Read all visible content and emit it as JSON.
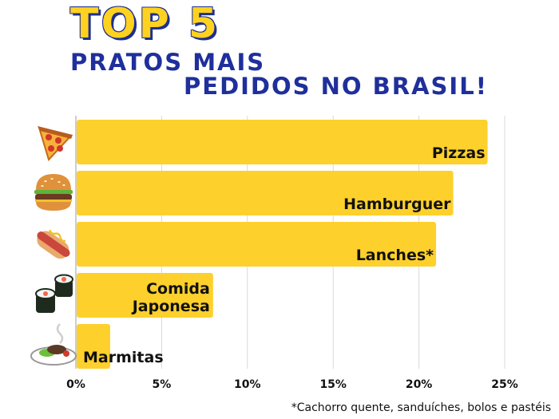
{
  "title": {
    "top": "TOP 5",
    "line1": "PRATOS MAIS",
    "line2": "PEDIDOS NO BRASIL!"
  },
  "footnote": "*Cachorro quente, sanduíches, bolos e pastéis",
  "colors": {
    "bar": "#fdd02c",
    "title_yellow": "#ffd21f",
    "title_blue": "#1f2f9b",
    "grid": "#d9d9d9",
    "text": "#111111"
  },
  "chart_data": {
    "type": "bar",
    "orientation": "horizontal",
    "categories": [
      "Pizzas",
      "Hamburguer",
      "Lanches*",
      "Comida Japonesa",
      "Marmitas"
    ],
    "category_lines": [
      [
        "Pizzas"
      ],
      [
        "Hamburguer"
      ],
      [
        "Lanches*"
      ],
      [
        "Comida",
        "Japonesa"
      ],
      [
        "Marmitas"
      ]
    ],
    "values": [
      24,
      22,
      21,
      8,
      2
    ],
    "icons": [
      "pizza-icon",
      "hamburger-icon",
      "hotdog-icon",
      "sushi-icon",
      "marmita-icon"
    ],
    "xlim": [
      0,
      25
    ],
    "xticks": [
      0,
      5,
      10,
      15,
      20,
      25
    ],
    "xtick_labels": [
      "0%",
      "5%",
      "10%",
      "15%",
      "20%",
      "25%"
    ],
    "grid": true
  }
}
